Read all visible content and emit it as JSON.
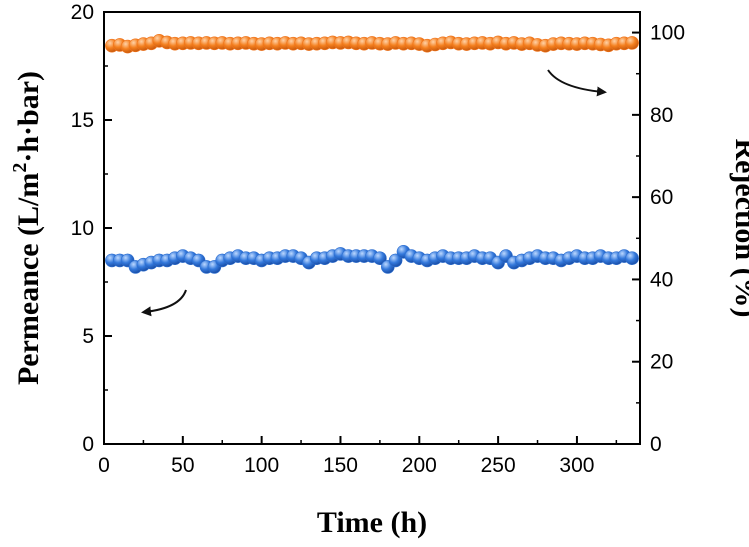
{
  "chart_data": {
    "type": "scatter",
    "title": "",
    "xlabel": "Time (h)",
    "ylabel_left": "Permeance (L/m²·h·bar)",
    "ylabel_right": "Rejection (%)",
    "ylabel_left_parts": {
      "pre": "Permeance (L/m",
      "sup": "2",
      "post": "·h·bar)"
    },
    "xlim": [
      0,
      340
    ],
    "ylim_left": [
      0,
      20
    ],
    "ylim_right": [
      0,
      105
    ],
    "x_ticks": [
      0,
      50,
      100,
      150,
      200,
      250,
      300
    ],
    "y_left_ticks": [
      0,
      5,
      10,
      15,
      20
    ],
    "y_right_ticks": [
      0,
      20,
      40,
      60,
      80,
      100
    ],
    "series": [
      {
        "name": "Rejection",
        "axis": "right",
        "color": "#f0741c",
        "x": [
          5,
          10,
          15,
          20,
          25,
          30,
          35,
          40,
          45,
          50,
          55,
          60,
          65,
          70,
          75,
          80,
          85,
          90,
          95,
          100,
          105,
          110,
          115,
          120,
          125,
          130,
          135,
          140,
          145,
          150,
          155,
          160,
          165,
          170,
          175,
          180,
          185,
          190,
          195,
          200,
          205,
          210,
          215,
          220,
          225,
          230,
          235,
          240,
          245,
          250,
          255,
          260,
          265,
          270,
          275,
          280,
          285,
          290,
          295,
          300,
          305,
          310,
          315,
          320,
          325,
          330,
          335
        ],
        "values": [
          96.8,
          97.0,
          96.6,
          96.9,
          97.2,
          97.4,
          98.0,
          97.6,
          97.3,
          97.4,
          97.5,
          97.4,
          97.5,
          97.4,
          97.5,
          97.3,
          97.4,
          97.5,
          97.3,
          97.2,
          97.4,
          97.3,
          97.5,
          97.3,
          97.4,
          97.2,
          97.3,
          97.4,
          97.6,
          97.5,
          97.6,
          97.4,
          97.3,
          97.5,
          97.3,
          97.2,
          97.5,
          97.3,
          97.4,
          97.2,
          96.8,
          97.1,
          97.4,
          97.6,
          97.3,
          97.2,
          97.4,
          97.5,
          97.3,
          97.6,
          97.3,
          97.5,
          97.2,
          97.4,
          97.0,
          96.8,
          97.2,
          97.4,
          97.3,
          97.2,
          97.4,
          97.3,
          97.1,
          96.9,
          97.3,
          97.4,
          97.5
        ]
      },
      {
        "name": "Permeance",
        "axis": "left",
        "color": "#2e6fd0",
        "x": [
          5,
          10,
          15,
          20,
          25,
          30,
          35,
          40,
          45,
          50,
          55,
          60,
          65,
          70,
          75,
          80,
          85,
          90,
          95,
          100,
          105,
          110,
          115,
          120,
          125,
          130,
          135,
          140,
          145,
          150,
          155,
          160,
          165,
          170,
          175,
          180,
          185,
          190,
          195,
          200,
          205,
          210,
          215,
          220,
          225,
          230,
          235,
          240,
          245,
          250,
          255,
          260,
          265,
          270,
          275,
          280,
          285,
          290,
          295,
          300,
          305,
          310,
          315,
          320,
          325,
          330,
          335
        ],
        "values": [
          8.5,
          8.5,
          8.5,
          8.2,
          8.3,
          8.4,
          8.5,
          8.5,
          8.6,
          8.7,
          8.6,
          8.5,
          8.2,
          8.2,
          8.5,
          8.6,
          8.7,
          8.6,
          8.6,
          8.5,
          8.6,
          8.6,
          8.7,
          8.7,
          8.6,
          8.4,
          8.6,
          8.6,
          8.7,
          8.8,
          8.7,
          8.7,
          8.7,
          8.7,
          8.6,
          8.2,
          8.5,
          8.9,
          8.7,
          8.6,
          8.5,
          8.6,
          8.7,
          8.6,
          8.6,
          8.6,
          8.7,
          8.6,
          8.6,
          8.4,
          8.7,
          8.4,
          8.5,
          8.6,
          8.7,
          8.6,
          8.6,
          8.5,
          8.6,
          8.7,
          8.6,
          8.6,
          8.7,
          8.6,
          8.6,
          8.7,
          8.6
        ]
      }
    ],
    "annotations": [
      {
        "name": "arrow-to-right-axis",
        "target": "Rejection",
        "direction": "right"
      },
      {
        "name": "arrow-to-left-axis",
        "target": "Permeance",
        "direction": "left"
      }
    ],
    "grid": false,
    "legend": "none"
  }
}
